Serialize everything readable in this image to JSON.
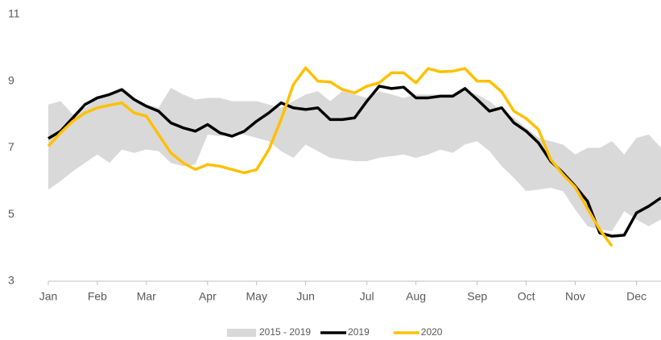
{
  "chart_data": {
    "type": "line",
    "categories": [
      "Jan",
      null,
      null,
      null,
      "Feb",
      null,
      null,
      null,
      "Mar",
      null,
      null,
      null,
      null,
      "Apr",
      null,
      null,
      null,
      "May",
      null,
      null,
      null,
      "Jun",
      null,
      null,
      null,
      null,
      "Jul",
      null,
      null,
      null,
      "Aug",
      null,
      null,
      null,
      null,
      "Sep",
      null,
      null,
      null,
      "Oct",
      null,
      null,
      null,
      "Nov",
      null,
      null,
      null,
      null,
      "Dec",
      null,
      null
    ],
    "band": {
      "name": "2015 - 2019",
      "color": "#d9d9d9",
      "high": [
        8.3,
        8.4,
        8.0,
        8.2,
        8.5,
        8.6,
        8.7,
        8.5,
        8.3,
        8.2,
        8.8,
        8.6,
        8.45,
        8.5,
        8.5,
        8.4,
        8.4,
        8.4,
        8.3,
        8.2,
        8.4,
        8.6,
        8.7,
        8.4,
        8.7,
        8.6,
        8.5,
        8.7,
        8.6,
        8.5,
        8.6,
        8.6,
        8.6,
        8.6,
        8.7,
        8.6,
        8.4,
        8.1,
        7.9,
        7.6,
        7.3,
        7.2,
        7.1,
        6.8,
        7.0,
        7.0,
        7.2,
        6.8,
        7.3,
        7.4,
        7.0
      ],
      "low": [
        5.75,
        6.0,
        6.3,
        6.55,
        6.8,
        6.55,
        6.95,
        6.85,
        6.95,
        6.9,
        6.55,
        6.45,
        6.5,
        7.4,
        7.35,
        7.4,
        7.4,
        7.3,
        7.2,
        6.9,
        6.7,
        7.1,
        6.9,
        6.7,
        6.65,
        6.6,
        6.6,
        6.7,
        6.75,
        6.8,
        6.7,
        6.8,
        6.95,
        6.85,
        7.1,
        7.2,
        6.9,
        6.45,
        6.1,
        5.7,
        5.75,
        5.8,
        5.7,
        5.15,
        4.65,
        4.55,
        4.5,
        5.1,
        4.85,
        4.65,
        4.85
      ]
    },
    "series": [
      {
        "name": "2019",
        "color": "#000000",
        "values": [
          7.28,
          7.5,
          7.9,
          8.3,
          8.5,
          8.6,
          8.75,
          8.45,
          8.25,
          8.1,
          7.75,
          7.6,
          7.5,
          7.7,
          7.45,
          7.35,
          7.5,
          7.8,
          8.05,
          8.35,
          8.2,
          8.15,
          8.2,
          7.85,
          7.85,
          7.9,
          8.4,
          8.85,
          8.78,
          8.82,
          8.5,
          8.5,
          8.55,
          8.55,
          8.78,
          8.45,
          8.1,
          8.2,
          7.75,
          7.5,
          7.15,
          6.6,
          6.25,
          5.85,
          5.4,
          4.45,
          4.35,
          4.38,
          5.05,
          5.25,
          5.5
        ]
      },
      {
        "name": "2020",
        "color": "#ffc000",
        "values": [
          7.05,
          7.45,
          7.8,
          8.05,
          8.2,
          8.28,
          8.35,
          8.05,
          7.95,
          7.4,
          6.85,
          6.55,
          6.35,
          6.5,
          6.45,
          6.35,
          6.25,
          6.35,
          6.95,
          7.85,
          8.9,
          9.4,
          9.0,
          8.98,
          8.75,
          8.65,
          8.85,
          8.95,
          9.25,
          9.25,
          8.95,
          9.38,
          9.28,
          9.3,
          9.38,
          9.0,
          9.0,
          8.68,
          8.1,
          7.88,
          7.55,
          6.65,
          6.2,
          5.82,
          5.18,
          4.55,
          4.05,
          null,
          null,
          null,
          null
        ]
      }
    ],
    "ylim": [
      3,
      11
    ],
    "yticks": [
      3,
      5,
      7,
      9,
      11
    ],
    "grid": false,
    "legend": "bottom"
  }
}
